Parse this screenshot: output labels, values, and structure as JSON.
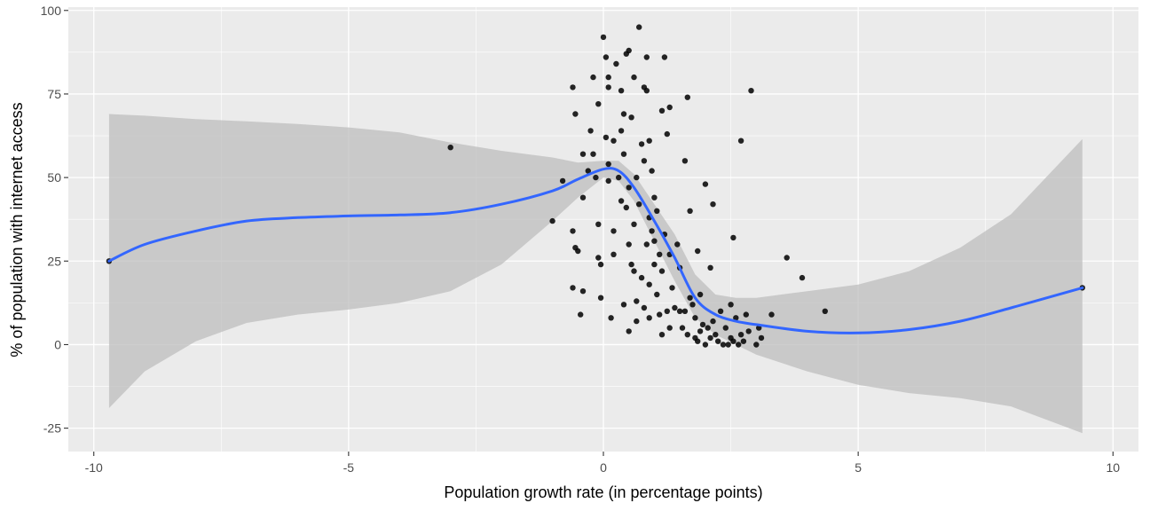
{
  "chart_data": {
    "type": "scatter",
    "xlabel": "Population growth rate (in percentage points)",
    "ylabel": "% of population with internet access",
    "xlim": [
      -10.5,
      10.5
    ],
    "ylim": [
      -32,
      101
    ],
    "x_ticks": [
      -10,
      -5,
      0,
      5,
      10
    ],
    "y_ticks": [
      -25,
      0,
      25,
      50,
      75,
      100
    ],
    "x_tick_labels": [
      "-10",
      "-5",
      "0",
      "5",
      "10"
    ],
    "y_tick_labels": [
      "-25",
      "0",
      "25",
      "50",
      "75",
      "100"
    ],
    "grid": true,
    "colors": {
      "panel": "#EBEBEB",
      "grid": "#FFFFFF",
      "points": "#000000",
      "smooth_line": "#3366FF",
      "confidence_band": "#BEBEBE"
    },
    "points": [
      [
        -9.7,
        25
      ],
      [
        -3.0,
        59
      ],
      [
        -1.0,
        37
      ],
      [
        -0.8,
        49
      ],
      [
        -0.6,
        34
      ],
      [
        -0.6,
        77
      ],
      [
        -0.55,
        69
      ],
      [
        -0.6,
        17
      ],
      [
        -0.5,
        28
      ],
      [
        -0.55,
        29
      ],
      [
        -0.45,
        9
      ],
      [
        -0.4,
        16
      ],
      [
        -0.4,
        44
      ],
      [
        -0.4,
        57
      ],
      [
        -0.3,
        52
      ],
      [
        -0.25,
        64
      ],
      [
        -0.2,
        80
      ],
      [
        -0.2,
        57
      ],
      [
        -0.15,
        50
      ],
      [
        -0.1,
        72
      ],
      [
        -0.1,
        36
      ],
      [
        -0.1,
        26
      ],
      [
        -0.05,
        24
      ],
      [
        -0.05,
        14
      ],
      [
        0.0,
        92
      ],
      [
        0.05,
        86
      ],
      [
        0.05,
        62
      ],
      [
        0.1,
        80
      ],
      [
        0.1,
        77
      ],
      [
        0.1,
        54
      ],
      [
        0.1,
        49
      ],
      [
        0.15,
        8
      ],
      [
        0.2,
        27
      ],
      [
        0.2,
        34
      ],
      [
        0.2,
        61
      ],
      [
        0.25,
        84
      ],
      [
        0.3,
        50
      ],
      [
        0.35,
        76
      ],
      [
        0.35,
        64
      ],
      [
        0.35,
        43
      ],
      [
        0.4,
        12
      ],
      [
        0.4,
        57
      ],
      [
        0.4,
        69
      ],
      [
        0.45,
        87
      ],
      [
        0.45,
        41
      ],
      [
        0.5,
        88
      ],
      [
        0.5,
        47
      ],
      [
        0.5,
        30
      ],
      [
        0.5,
        4
      ],
      [
        0.55,
        68
      ],
      [
        0.55,
        24
      ],
      [
        0.6,
        80
      ],
      [
        0.6,
        36
      ],
      [
        0.6,
        22
      ],
      [
        0.65,
        13
      ],
      [
        0.65,
        7
      ],
      [
        0.65,
        50
      ],
      [
        0.7,
        95
      ],
      [
        0.7,
        42
      ],
      [
        0.75,
        60
      ],
      [
        0.75,
        20
      ],
      [
        0.8,
        55
      ],
      [
        0.8,
        77
      ],
      [
        0.8,
        11
      ],
      [
        0.85,
        86
      ],
      [
        0.85,
        30
      ],
      [
        0.85,
        76
      ],
      [
        0.9,
        61
      ],
      [
        0.9,
        38
      ],
      [
        0.9,
        18
      ],
      [
        0.9,
        8
      ],
      [
        0.95,
        34
      ],
      [
        0.95,
        52
      ],
      [
        1.0,
        24
      ],
      [
        1.0,
        44
      ],
      [
        1.0,
        31
      ],
      [
        1.05,
        15
      ],
      [
        1.05,
        40
      ],
      [
        1.1,
        27
      ],
      [
        1.1,
        9
      ],
      [
        1.15,
        3
      ],
      [
        1.15,
        70
      ],
      [
        1.15,
        22
      ],
      [
        1.2,
        86
      ],
      [
        1.2,
        33
      ],
      [
        1.25,
        63
      ],
      [
        1.25,
        10
      ],
      [
        1.3,
        71
      ],
      [
        1.3,
        5
      ],
      [
        1.3,
        27
      ],
      [
        1.35,
        17
      ],
      [
        1.4,
        11
      ],
      [
        1.45,
        30
      ],
      [
        1.5,
        23
      ],
      [
        1.5,
        10
      ],
      [
        1.55,
        5
      ],
      [
        1.6,
        55
      ],
      [
        1.6,
        10
      ],
      [
        1.65,
        74
      ],
      [
        1.65,
        3
      ],
      [
        1.7,
        40
      ],
      [
        1.7,
        14
      ],
      [
        1.75,
        12
      ],
      [
        1.8,
        8
      ],
      [
        1.8,
        2
      ],
      [
        1.85,
        28
      ],
      [
        1.85,
        1
      ],
      [
        1.9,
        15
      ],
      [
        1.9,
        4
      ],
      [
        1.95,
        6
      ],
      [
        2.0,
        48
      ],
      [
        2.0,
        0
      ],
      [
        2.05,
        5
      ],
      [
        2.1,
        23
      ],
      [
        2.1,
        2
      ],
      [
        2.15,
        42
      ],
      [
        2.15,
        7
      ],
      [
        2.2,
        3
      ],
      [
        2.25,
        1
      ],
      [
        2.3,
        10
      ],
      [
        2.35,
        0
      ],
      [
        2.4,
        5
      ],
      [
        2.45,
        0
      ],
      [
        2.5,
        12
      ],
      [
        2.5,
        2
      ],
      [
        2.55,
        32
      ],
      [
        2.55,
        1
      ],
      [
        2.6,
        8
      ],
      [
        2.65,
        0
      ],
      [
        2.7,
        61
      ],
      [
        2.7,
        3
      ],
      [
        2.75,
        1
      ],
      [
        2.8,
        9
      ],
      [
        2.85,
        4
      ],
      [
        2.9,
        76
      ],
      [
        3.0,
        0
      ],
      [
        3.05,
        5
      ],
      [
        3.1,
        2
      ],
      [
        3.3,
        9
      ],
      [
        3.6,
        26
      ],
      [
        3.9,
        20
      ],
      [
        4.35,
        10
      ],
      [
        9.4,
        17
      ]
    ],
    "smooth_line": [
      [
        -9.7,
        25
      ],
      [
        -9.0,
        30
      ],
      [
        -8.0,
        34
      ],
      [
        -7.0,
        37
      ],
      [
        -6.0,
        38
      ],
      [
        -5.0,
        38.5
      ],
      [
        -4.0,
        38.8
      ],
      [
        -3.0,
        39.5
      ],
      [
        -2.0,
        42
      ],
      [
        -1.0,
        46
      ],
      [
        -0.5,
        49.5
      ],
      [
        0.0,
        52.5
      ],
      [
        0.3,
        52
      ],
      [
        0.6,
        47
      ],
      [
        1.0,
        37
      ],
      [
        1.4,
        26
      ],
      [
        1.8,
        14
      ],
      [
        2.2,
        9
      ],
      [
        2.6,
        7
      ],
      [
        3.0,
        6
      ],
      [
        4.0,
        4
      ],
      [
        5.0,
        3.5
      ],
      [
        6.0,
        4.5
      ],
      [
        7.0,
        7
      ],
      [
        8.0,
        11
      ],
      [
        9.4,
        17
      ]
    ],
    "confidence_upper": [
      [
        -9.7,
        69
      ],
      [
        -9.0,
        68.5
      ],
      [
        -8.0,
        67.5
      ],
      [
        -7.0,
        66.8
      ],
      [
        -6.0,
        66
      ],
      [
        -5.0,
        65
      ],
      [
        -4.0,
        63.5
      ],
      [
        -3.0,
        60.5
      ],
      [
        -2.0,
        58
      ],
      [
        -1.0,
        56
      ],
      [
        -0.5,
        54.5
      ],
      [
        0.0,
        55
      ],
      [
        0.3,
        55
      ],
      [
        0.6,
        51
      ],
      [
        1.0,
        42
      ],
      [
        1.4,
        33
      ],
      [
        1.8,
        21
      ],
      [
        2.2,
        15
      ],
      [
        2.6,
        14
      ],
      [
        3.0,
        14
      ],
      [
        4.0,
        16
      ],
      [
        5.0,
        18
      ],
      [
        6.0,
        22
      ],
      [
        7.0,
        29
      ],
      [
        8.0,
        39
      ],
      [
        9.4,
        61.5
      ]
    ],
    "confidence_lower": [
      [
        -9.7,
        -19
      ],
      [
        -9.0,
        -8
      ],
      [
        -8.0,
        1
      ],
      [
        -7.0,
        6.5
      ],
      [
        -6.0,
        9
      ],
      [
        -5.0,
        10.5
      ],
      [
        -4.0,
        12.5
      ],
      [
        -3.0,
        16
      ],
      [
        -2.0,
        24
      ],
      [
        -1.0,
        37
      ],
      [
        -0.5,
        44
      ],
      [
        0.0,
        50
      ],
      [
        0.3,
        49
      ],
      [
        0.6,
        43
      ],
      [
        1.0,
        31
      ],
      [
        1.4,
        19
      ],
      [
        1.8,
        8
      ],
      [
        2.2,
        3
      ],
      [
        2.6,
        0
      ],
      [
        3.0,
        -3
      ],
      [
        4.0,
        -8
      ],
      [
        5.0,
        -12
      ],
      [
        6.0,
        -14.5
      ],
      [
        7.0,
        -16
      ],
      [
        8.0,
        -18.5
      ],
      [
        9.4,
        -26.5
      ]
    ]
  }
}
